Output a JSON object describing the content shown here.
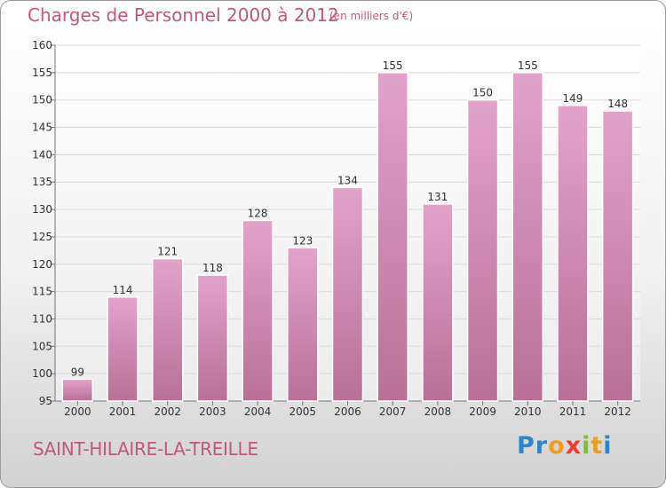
{
  "header": {
    "title": "Charges de Personnel 2000 à 2012",
    "subtitle": "(en milliers d'€)"
  },
  "footer": {
    "place": "SAINT-HILAIRE-LA-TREILLE",
    "logo_letters": [
      {
        "ch": "P",
        "color": "#2e86c8"
      },
      {
        "ch": "r",
        "color": "#2e86c8"
      },
      {
        "ch": "o",
        "color": "#f39b1c"
      },
      {
        "ch": "x",
        "color": "#ec3e2d"
      },
      {
        "ch": "i",
        "color": "#7cbf3a"
      },
      {
        "ch": "t",
        "color": "#f39b1c"
      },
      {
        "ch": "i",
        "color": "#2e86c8"
      }
    ]
  },
  "colors": {
    "title": "#c2577f",
    "bar_top": "#e2a3cb",
    "bar_bottom": "#b87096",
    "grid": "#d9d9d9",
    "axis": "#777777"
  },
  "chart_data": {
    "type": "bar",
    "categories": [
      "2000",
      "2001",
      "2002",
      "2003",
      "2004",
      "2005",
      "2006",
      "2007",
      "2008",
      "2009",
      "2010",
      "2011",
      "2012"
    ],
    "values": [
      99,
      114,
      121,
      118,
      128,
      123,
      134,
      155,
      131,
      150,
      155,
      149,
      148
    ],
    "ylim": [
      95,
      160
    ],
    "yticks": [
      95,
      100,
      105,
      110,
      115,
      120,
      125,
      130,
      135,
      140,
      145,
      150,
      155,
      160
    ],
    "grid": true,
    "xlabel": "",
    "ylabel": ""
  }
}
